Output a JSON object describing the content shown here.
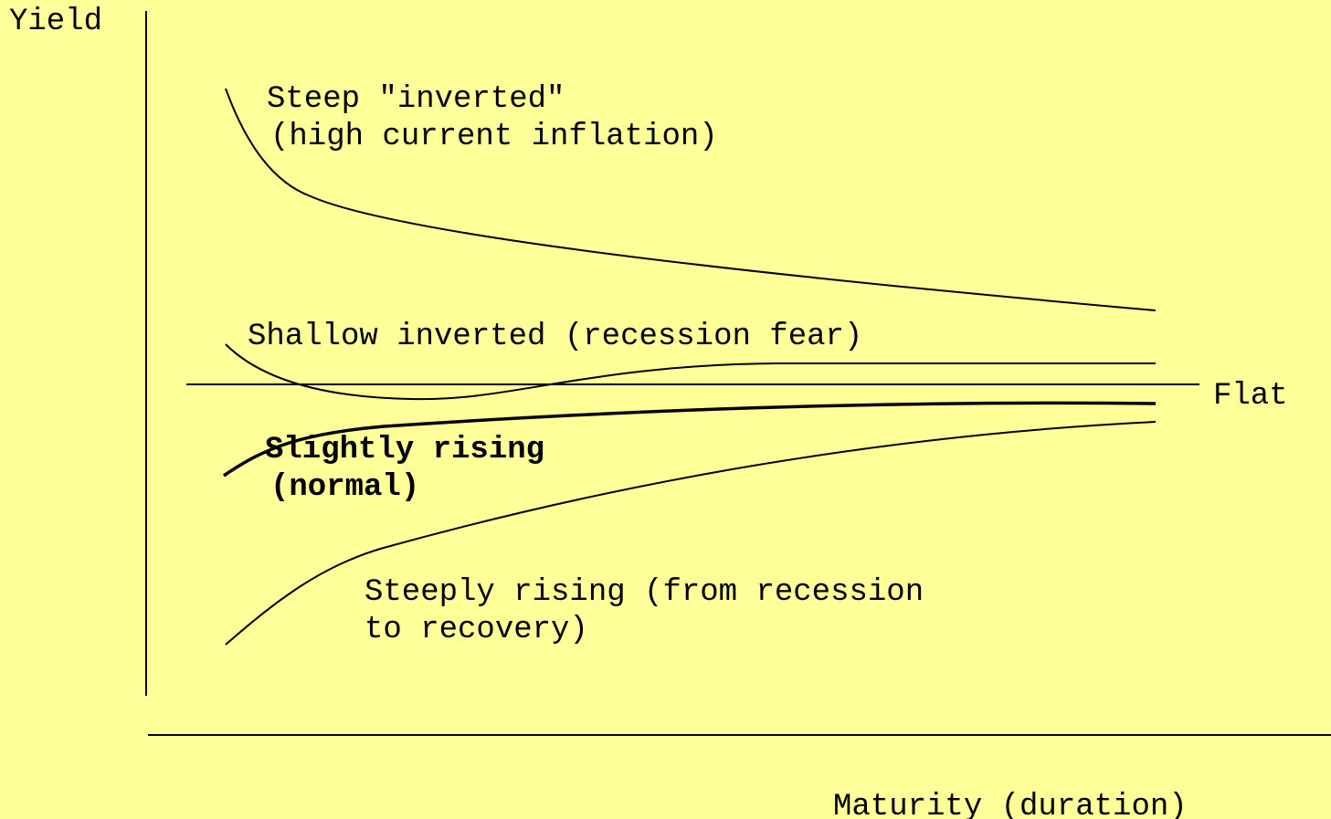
{
  "axes": {
    "y_label": "Yield",
    "x_label": "Maturity (duration)"
  },
  "curves": [
    {
      "label": [
        "Steep \"inverted\"",
        "(high current inflation)"
      ]
    },
    {
      "label": [
        "Shallow inverted (recession fear)"
      ]
    },
    {
      "label": [
        "Flat"
      ]
    },
    {
      "label": [
        "Slightly rising",
        "(normal)"
      ]
    },
    {
      "label": [
        "Steeply rising (from recession",
        "to recovery)"
      ]
    }
  ]
}
